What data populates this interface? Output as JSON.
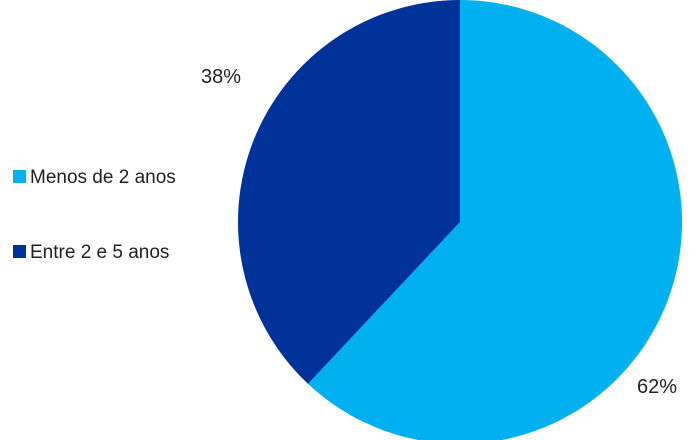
{
  "chart_data": {
    "type": "pie",
    "title": "",
    "legend_position": "left",
    "slices": [
      {
        "label": "Menos de 2 anos",
        "value": 62,
        "display": "62%",
        "color": "#00B0F0"
      },
      {
        "label": "Entre 2 e 5 anos",
        "value": 38,
        "display": "38%",
        "color": "#003399"
      }
    ]
  }
}
